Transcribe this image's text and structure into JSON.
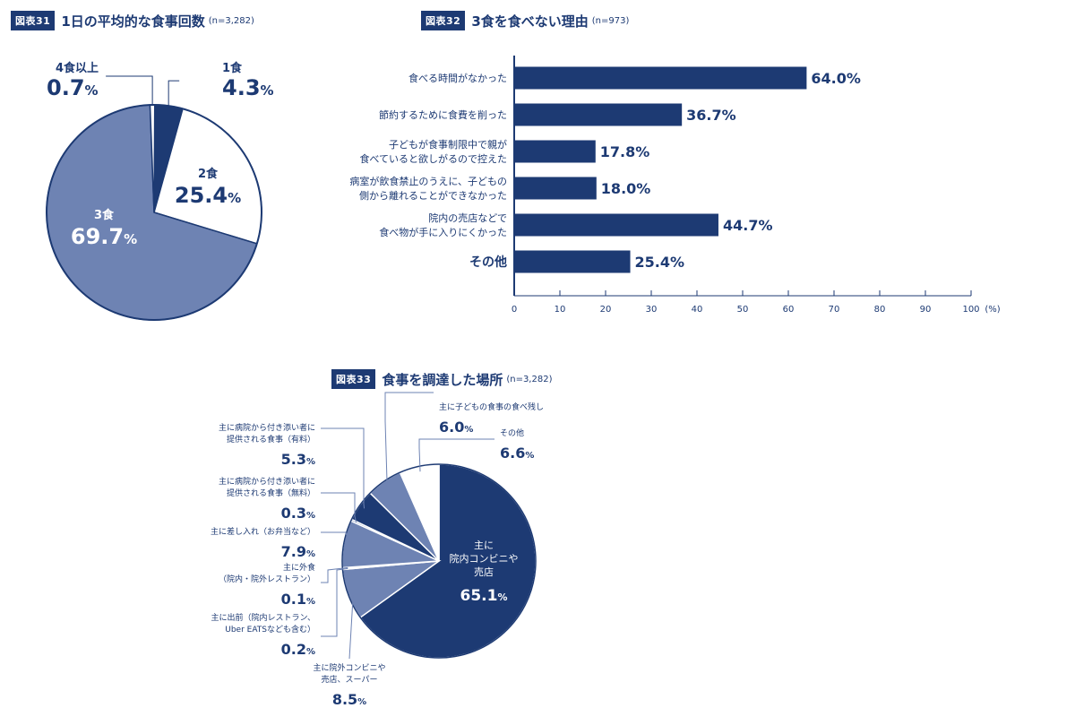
{
  "chart_data": [
    {
      "type": "pie",
      "badge": "図表31",
      "title": "1日の平均的な食事回数",
      "n": "(n=3,282)",
      "categories": [
        "1食",
        "2食",
        "3食",
        "4食以上"
      ],
      "values": [
        4.3,
        25.4,
        69.7,
        0.7
      ],
      "labels": [
        "4.3%",
        "25.4%",
        "69.7%",
        "0.7%"
      ],
      "colors": [
        "#1d3a73",
        "#ffffff",
        "#6e83b3",
        "#ffffff"
      ]
    },
    {
      "type": "bar",
      "orientation": "horizontal",
      "badge": "図表32",
      "title": "3食を食べない理由",
      "n": "(n=973)",
      "categories": [
        [
          "食べる時間がなかった"
        ],
        [
          "節約するために食費を削った"
        ],
        [
          "子どもが食事制限中で親が",
          "食べていると欲しがるので控えた"
        ],
        [
          "病室が飲食禁止のうえに、子どもの",
          "側から離れることができなかった"
        ],
        [
          "院内の売店などで",
          "食べ物が手に入りにくかった"
        ],
        [
          "その他"
        ]
      ],
      "values": [
        64.0,
        36.7,
        17.8,
        18.0,
        44.7,
        25.4
      ],
      "value_labels": [
        "64.0%",
        "36.7%",
        "17.8%",
        "18.0%",
        "44.7%",
        "25.4%"
      ],
      "xlim": [
        0,
        100
      ],
      "xticks": [
        "0",
        "10",
        "20",
        "30",
        "40",
        "50",
        "60",
        "70",
        "80",
        "90",
        "100"
      ],
      "xunit": "(%)",
      "bar_color": "#1d3a73"
    },
    {
      "type": "pie",
      "badge": "図表33",
      "title": "食事を調達した場所",
      "n": "(n=3,282)",
      "categories": [
        [
          "主に",
          "院内コンビニや",
          "売店"
        ],
        [
          "主に院外コンビニや",
          "売店、スーパー"
        ],
        [
          "主に出前（院内レストラン、",
          "Uber EATSなども含む）"
        ],
        [
          "主に外食",
          "（院内・院外レストラン）"
        ],
        [
          "主に差し入れ（お弁当など）"
        ],
        [
          "主に病院から付き添い者に",
          "提供される食事（無料）"
        ],
        [
          "主に病院から付き添い者に",
          "提供される食事（有料）"
        ],
        [
          "主に子どもの食事の食べ残し"
        ],
        [
          "その他"
        ]
      ],
      "values": [
        65.1,
        8.5,
        0.2,
        0.1,
        7.9,
        0.3,
        5.3,
        6.0,
        6.6
      ],
      "labels": [
        "65.1%",
        "8.5%",
        "0.2%",
        "0.1%",
        "7.9%",
        "0.3%",
        "5.3%",
        "6.0%",
        "6.6%"
      ],
      "colors": [
        "#1d3a73",
        "#6e83b3",
        "#6e83b3",
        "#6e83b3",
        "#6e83b3",
        "#6e83b3",
        "#1d3a73",
        "#6e83b3",
        "#ffffff"
      ]
    }
  ]
}
